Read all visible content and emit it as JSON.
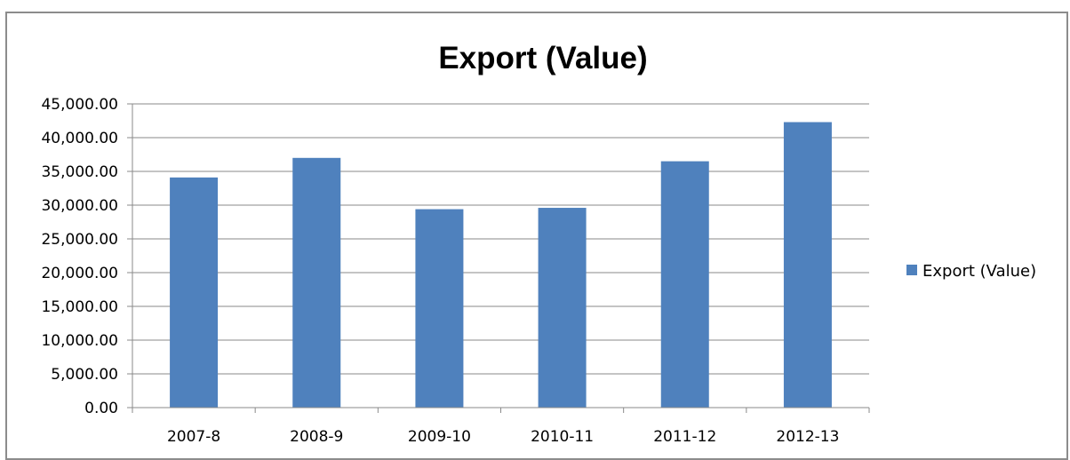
{
  "chart_data": {
    "type": "bar",
    "title": "Export (Value)",
    "xlabel": "",
    "ylabel": "",
    "categories": [
      "2007-8",
      "2008-9",
      "2009-10",
      "2010-11",
      "2011-12",
      "2012-13"
    ],
    "series": [
      {
        "name": "Export (Value)",
        "values": [
          34100,
          37000,
          29400,
          29600,
          36500,
          42300
        ],
        "color": "#4f81bd"
      }
    ],
    "ylim": [
      0,
      45000
    ],
    "yticks": [
      "0.00",
      "5,000.00",
      "10,000.00",
      "15,000.00",
      "20,000.00",
      "25,000.00",
      "30,000.00",
      "35,000.00",
      "40,000.00",
      "45,000.00"
    ],
    "grid": true,
    "legend_position": "right"
  }
}
